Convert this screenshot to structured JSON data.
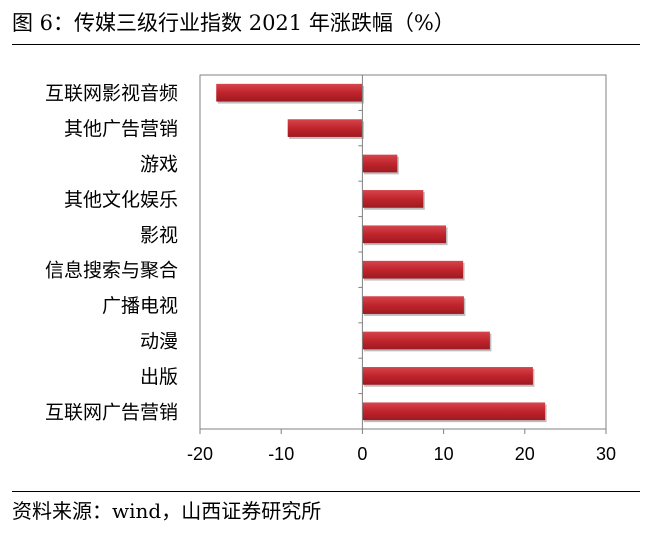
{
  "figure": {
    "title": "图 6：传媒三级行业指数 2021 年涨跌幅（%）",
    "source": "资料来源：wind，山西证券研究所"
  },
  "colors": {
    "bar": "#c0242c",
    "bar_shadow": "#6e6e6e",
    "axis": "#808080",
    "frame": "#808080"
  },
  "chart_data": {
    "type": "bar",
    "orientation": "horizontal",
    "categories": [
      "互联网影视音频",
      "其他广告营销",
      "游戏",
      "其他文化娱乐",
      "影视",
      "信息搜索与聚合",
      "广播电视",
      "动漫",
      "出版",
      "互联网广告营销"
    ],
    "values": [
      -18,
      -9.2,
      4.3,
      7.5,
      10.3,
      12.4,
      12.5,
      15.7,
      21.0,
      22.5
    ],
    "xlim": [
      -20,
      30
    ],
    "xticks": [
      -20,
      -10,
      0,
      10,
      20,
      30
    ],
    "grid": false,
    "legend": "none"
  }
}
